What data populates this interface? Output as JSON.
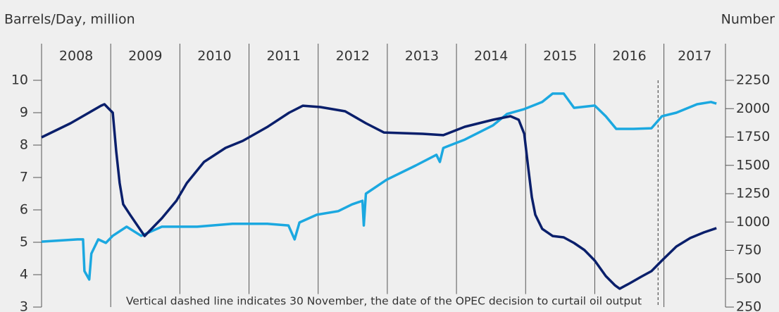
{
  "chart_data": {
    "type": "line",
    "y_label": "Barrels/Day, million",
    "y2_label": "Number",
    "annotation": "Vertical dashed line indicates 30 November, the date of the OPEC decision to curtail oil output",
    "reference_x": 2016.915,
    "xlim": [
      2008,
      2017.89
    ],
    "xticks": [
      {
        "value": 2008,
        "label": "2008"
      },
      {
        "value": 2009,
        "label": "2009"
      },
      {
        "value": 2010,
        "label": "2010"
      },
      {
        "value": 2011,
        "label": "2011"
      },
      {
        "value": 2012,
        "label": "2012"
      },
      {
        "value": 2013,
        "label": "2013"
      },
      {
        "value": 2014,
        "label": "2014"
      },
      {
        "value": 2015,
        "label": "2015"
      },
      {
        "value": 2016,
        "label": "2016"
      },
      {
        "value": 2017,
        "label": "2017"
      }
    ],
    "ylim": [
      3,
      10
    ],
    "yticks": [
      3,
      4,
      5,
      6,
      7,
      8,
      9,
      10
    ],
    "y2lim": [
      250,
      2250
    ],
    "y2ticks": [
      250,
      500,
      750,
      1000,
      1250,
      1500,
      1750,
      2000,
      2250
    ],
    "series": [
      {
        "color": "#1ba8e0",
        "axis": "y",
        "x": [
          2008.0,
          2008.52,
          2008.6,
          2008.62,
          2008.69,
          2008.72,
          2008.82,
          2008.93,
          2009.03,
          2009.23,
          2009.44,
          2009.74,
          2010.25,
          2010.76,
          2011.27,
          2011.57,
          2011.66,
          2011.73,
          2011.98,
          2012.29,
          2012.49,
          2012.64,
          2012.66,
          2012.69,
          2012.99,
          2013.41,
          2013.71,
          2013.76,
          2013.81,
          2014.12,
          2014.53,
          2014.73,
          2014.98,
          2015.24,
          2015.39,
          2015.55,
          2015.7,
          2016.0,
          2016.16,
          2016.31,
          2016.56,
          2016.82,
          2016.97,
          2017.18,
          2017.48,
          2017.68,
          2017.76
        ],
        "values": [
          5.02,
          5.09,
          5.09,
          4.11,
          3.85,
          4.65,
          5.09,
          4.98,
          5.2,
          5.48,
          5.2,
          5.48,
          5.48,
          5.57,
          5.57,
          5.52,
          5.09,
          5.61,
          5.85,
          5.96,
          6.17,
          6.28,
          5.52,
          6.5,
          6.93,
          7.37,
          7.7,
          7.48,
          7.91,
          8.17,
          8.61,
          8.96,
          9.11,
          9.33,
          9.59,
          9.59,
          9.15,
          9.22,
          8.89,
          8.5,
          8.5,
          8.52,
          8.89,
          9.0,
          9.26,
          9.33,
          9.28
        ]
      },
      {
        "color": "#0a1f6b",
        "axis": "y2",
        "x": [
          2008.0,
          2008.42,
          2008.86,
          2008.91,
          2008.98,
          2009.03,
          2009.08,
          2009.13,
          2009.18,
          2009.28,
          2009.49,
          2009.74,
          2009.95,
          2010.1,
          2010.35,
          2010.66,
          2010.91,
          2011.27,
          2011.58,
          2011.78,
          2012.03,
          2012.39,
          2012.69,
          2012.95,
          2013.51,
          2013.81,
          2014.12,
          2014.53,
          2014.78,
          2014.9,
          2014.98,
          2015.04,
          2015.09,
          2015.14,
          2015.24,
          2015.39,
          2015.55,
          2015.7,
          2015.85,
          2016.0,
          2016.16,
          2016.29,
          2016.36,
          2016.51,
          2016.67,
          2016.82,
          2016.97,
          2017.18,
          2017.38,
          2017.58,
          2017.76
        ],
        "values": [
          1747,
          1871,
          2026,
          2039,
          1995,
          1964,
          1623,
          1343,
          1157,
          1064,
          877,
          1033,
          1188,
          1343,
          1530,
          1654,
          1716,
          1840,
          1964,
          2026,
          2014,
          1977,
          1871,
          1790,
          1778,
          1766,
          1840,
          1902,
          1933,
          1902,
          1778,
          1467,
          1219,
          1064,
          940,
          877,
          865,
          815,
          753,
          660,
          523,
          443,
          412,
          461,
          517,
          567,
          660,
          784,
          859,
          909,
          946
        ]
      }
    ]
  }
}
